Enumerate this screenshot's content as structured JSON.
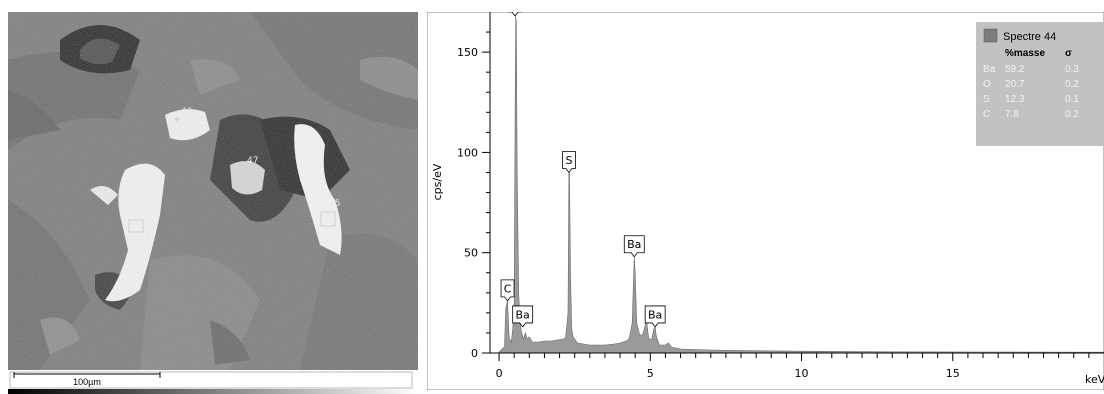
{
  "sem_image": {
    "point_labels": [
      "46",
      "47",
      "44",
      "45"
    ],
    "scale_bar_label": "100µm"
  },
  "chart_data": {
    "type": "line",
    "title": "",
    "xlabel": "keV",
    "ylabel": "cps/eV",
    "xlim": [
      -0.3,
      20
    ],
    "ylim": [
      0,
      170
    ],
    "x_ticks": [
      0,
      5,
      10,
      15
    ],
    "y_ticks": [
      0,
      50,
      100,
      150
    ],
    "grid": false,
    "series": [
      {
        "name": "Spectre 44",
        "color": "#9a9a9a",
        "points": [
          [
            0,
            0.5
          ],
          [
            0.1,
            2
          ],
          [
            0.18,
            3
          ],
          [
            0.22,
            22
          ],
          [
            0.28,
            26
          ],
          [
            0.33,
            8
          ],
          [
            0.4,
            5
          ],
          [
            0.45,
            12
          ],
          [
            0.5,
            25
          ],
          [
            0.53,
            120
          ],
          [
            0.55,
            168
          ],
          [
            0.57,
            165
          ],
          [
            0.6,
            90
          ],
          [
            0.65,
            30
          ],
          [
            0.7,
            14
          ],
          [
            0.75,
            10
          ],
          [
            0.8,
            7
          ],
          [
            0.85,
            9
          ],
          [
            0.88,
            10
          ],
          [
            0.92,
            7
          ],
          [
            1.0,
            8
          ],
          [
            1.1,
            5.5
          ],
          [
            1.3,
            5.5
          ],
          [
            1.5,
            6
          ],
          [
            1.7,
            6
          ],
          [
            1.9,
            6.5
          ],
          [
            2.1,
            7
          ],
          [
            2.2,
            7.5
          ],
          [
            2.28,
            20
          ],
          [
            2.31,
            90
          ],
          [
            2.33,
            90
          ],
          [
            2.36,
            40
          ],
          [
            2.4,
            12
          ],
          [
            2.45,
            8
          ],
          [
            2.6,
            5
          ],
          [
            3.0,
            4
          ],
          [
            3.5,
            4
          ],
          [
            3.8,
            4.5
          ],
          [
            4.0,
            5
          ],
          [
            4.2,
            6
          ],
          [
            4.3,
            7
          ],
          [
            4.4,
            15
          ],
          [
            4.45,
            40
          ],
          [
            4.47,
            48
          ],
          [
            4.5,
            40
          ],
          [
            4.55,
            15
          ],
          [
            4.65,
            9
          ],
          [
            4.75,
            9
          ],
          [
            4.83,
            14
          ],
          [
            4.87,
            19
          ],
          [
            4.9,
            13
          ],
          [
            4.95,
            7
          ],
          [
            5.05,
            7
          ],
          [
            5.12,
            12
          ],
          [
            5.16,
            13
          ],
          [
            5.2,
            8
          ],
          [
            5.3,
            4
          ],
          [
            5.5,
            4
          ],
          [
            5.6,
            5
          ],
          [
            5.7,
            3
          ],
          [
            6.0,
            2
          ],
          [
            7,
            1.5
          ],
          [
            8,
            1.2
          ],
          [
            10,
            0.9
          ],
          [
            13,
            0.6
          ],
          [
            16,
            0.5
          ],
          [
            20,
            0.4
          ]
        ]
      }
    ],
    "peak_labels": [
      {
        "label": "O",
        "x": 0.53,
        "y": 168
      },
      {
        "label": "S",
        "x": 2.31,
        "y": 90
      },
      {
        "label": "Ba",
        "x": 4.47,
        "y": 48
      },
      {
        "label": "C",
        "x": 0.28,
        "y": 26
      },
      {
        "label": "Ba",
        "x": 0.78,
        "y": 13
      },
      {
        "label": "Ba",
        "x": 5.16,
        "y": 13
      }
    ],
    "legend": {
      "position": "top-right",
      "series_name": "Spectre 44",
      "columns": [
        "",
        "%masse",
        "σ"
      ],
      "rows": [
        [
          "Ba",
          "59.2",
          "0.3"
        ],
        [
          "O",
          "20.7",
          "0.2"
        ],
        [
          "S",
          "12.3",
          "0.1"
        ],
        [
          "C",
          "7.8",
          "0.2"
        ]
      ]
    }
  }
}
